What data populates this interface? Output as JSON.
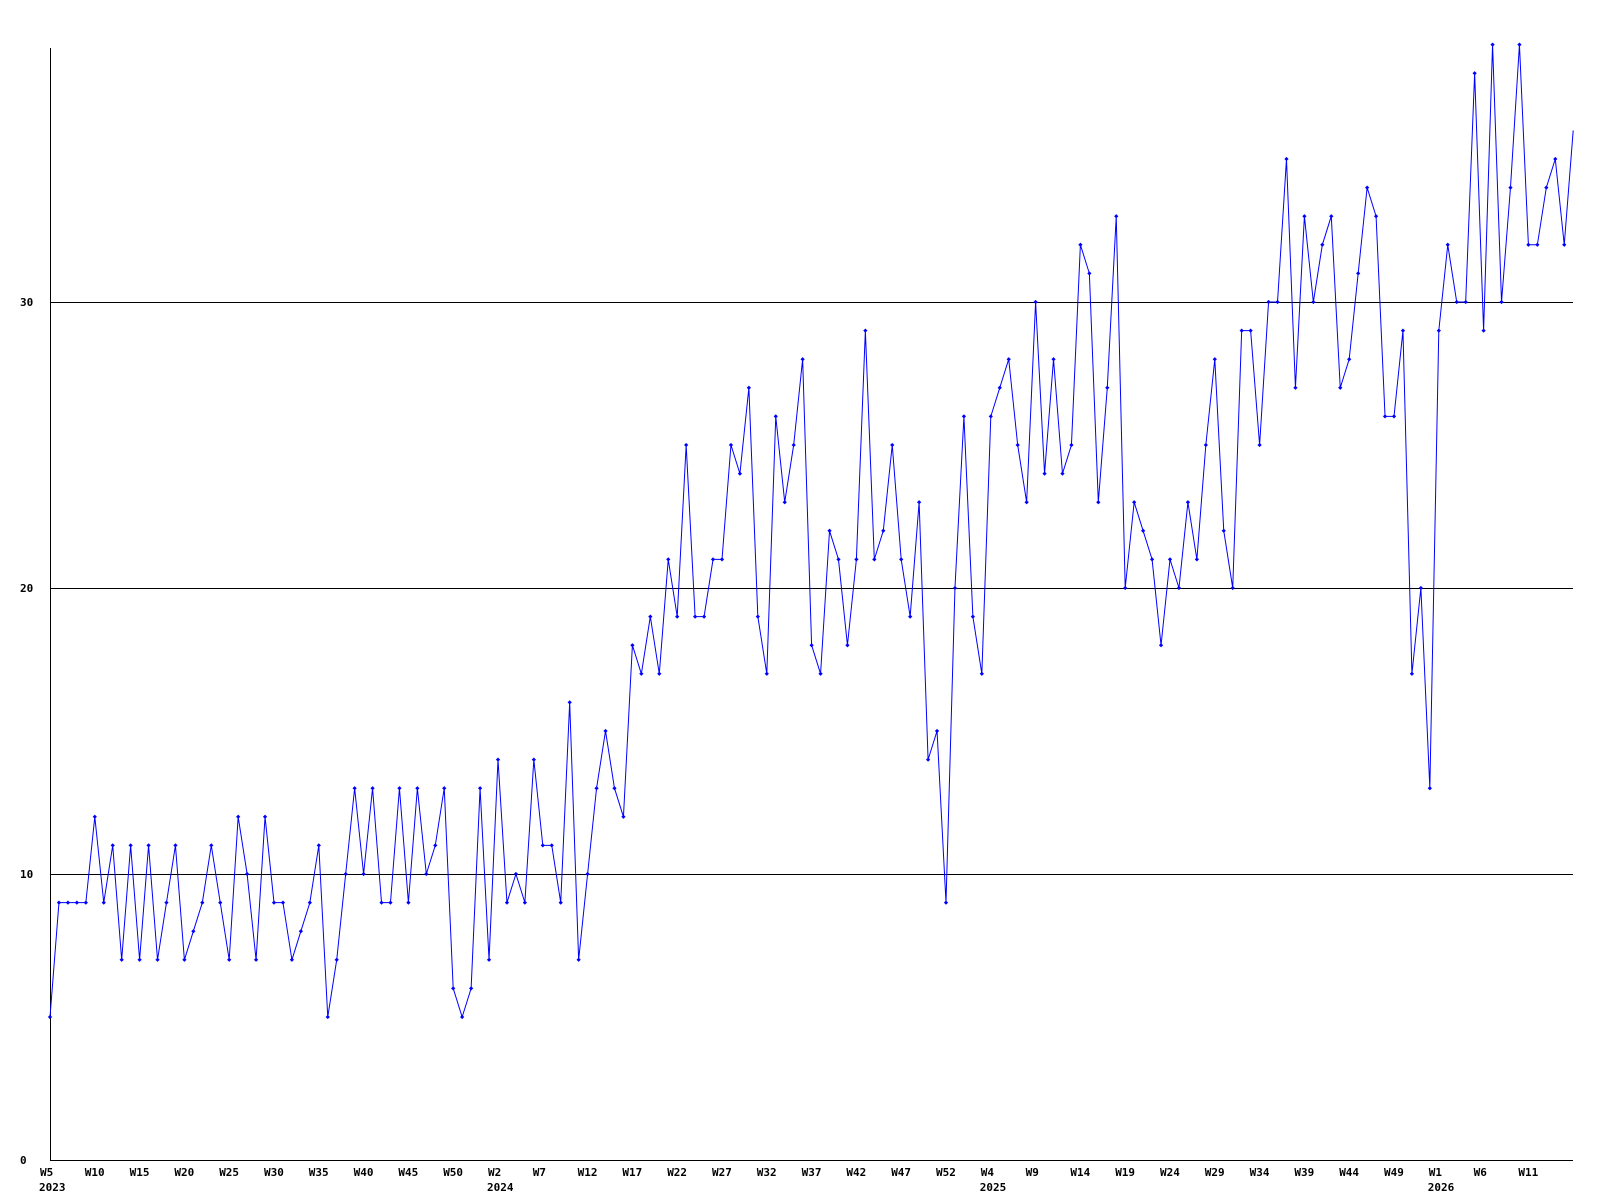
{
  "chart_data": {
    "type": "line",
    "title": "",
    "xlabel": "",
    "ylabel": "",
    "ylim": [
      0,
      39
    ],
    "yticks": [
      0,
      10,
      20,
      30
    ],
    "grid": {
      "horizontal": true,
      "vertical": false
    },
    "colors": {
      "series": "#0000ff",
      "grid": "#000000",
      "background": "#ffffff"
    },
    "x_start": "2023-W05",
    "x_ticks": [
      {
        "label": "W5",
        "year": "2023"
      },
      {
        "label": "W10",
        "year": ""
      },
      {
        "label": "W15",
        "year": ""
      },
      {
        "label": "W20",
        "year": ""
      },
      {
        "label": "W25",
        "year": ""
      },
      {
        "label": "W30",
        "year": ""
      },
      {
        "label": "W35",
        "year": ""
      },
      {
        "label": "W40",
        "year": ""
      },
      {
        "label": "W45",
        "year": ""
      },
      {
        "label": "W50",
        "year": ""
      },
      {
        "label": "W2",
        "year": "2024"
      },
      {
        "label": "W7",
        "year": ""
      },
      {
        "label": "W12",
        "year": ""
      },
      {
        "label": "W17",
        "year": ""
      },
      {
        "label": "W22",
        "year": ""
      },
      {
        "label": "W27",
        "year": ""
      },
      {
        "label": "W32",
        "year": ""
      },
      {
        "label": "W37",
        "year": ""
      },
      {
        "label": "W42",
        "year": ""
      },
      {
        "label": "W47",
        "year": ""
      },
      {
        "label": "W52",
        "year": ""
      },
      {
        "label": "W4",
        "year": "2025"
      },
      {
        "label": "W9",
        "year": ""
      },
      {
        "label": "W14",
        "year": ""
      },
      {
        "label": "W19",
        "year": ""
      },
      {
        "label": "W24",
        "year": ""
      },
      {
        "label": "W29",
        "year": ""
      },
      {
        "label": "W34",
        "year": ""
      },
      {
        "label": "W39",
        "year": ""
      },
      {
        "label": "W44",
        "year": ""
      },
      {
        "label": "W49",
        "year": ""
      },
      {
        "label": "W1",
        "year": "2026"
      },
      {
        "label": "W6",
        "year": ""
      },
      {
        "label": "W11",
        "year": ""
      }
    ],
    "series": [
      {
        "values": [
          5,
          9,
          9,
          9,
          9,
          12,
          9,
          11,
          7,
          11,
          7,
          11,
          7,
          9,
          11,
          7,
          8,
          9,
          11,
          9,
          7,
          12,
          10,
          7,
          12,
          9,
          9,
          7,
          8,
          9,
          11,
          5,
          7,
          10,
          13,
          10,
          13,
          9,
          9,
          13,
          9,
          13,
          10,
          11,
          13,
          6,
          5,
          6,
          13,
          7,
          14,
          9,
          10,
          9,
          14,
          11,
          11,
          9,
          16,
          7,
          10,
          13,
          15,
          13,
          12,
          18,
          17,
          19,
          17,
          21,
          19,
          25,
          19,
          19,
          21,
          21,
          25,
          24,
          27,
          19,
          17,
          26,
          23,
          25,
          28,
          18,
          17,
          22,
          21,
          18,
          21,
          29,
          21,
          22,
          25,
          21,
          19,
          23,
          14,
          15,
          9,
          20,
          26,
          19,
          17,
          26,
          27,
          28,
          25,
          23,
          30,
          24,
          28,
          24,
          25,
          32,
          31,
          23,
          27,
          33,
          20,
          23,
          22,
          21,
          18,
          21,
          20,
          23,
          21,
          25,
          28,
          22,
          20,
          29,
          29,
          25,
          30,
          30,
          35,
          27,
          33,
          30,
          32,
          33,
          27,
          28,
          31,
          34,
          33,
          26,
          26,
          29,
          17,
          20,
          13,
          29,
          32,
          30,
          30,
          38,
          29,
          39,
          30,
          34,
          39,
          32,
          32,
          34,
          35,
          32,
          36
        ]
      }
    ]
  }
}
